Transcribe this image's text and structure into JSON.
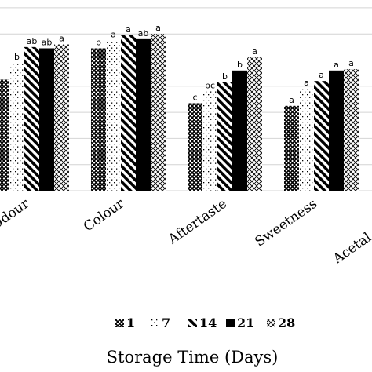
{
  "chart_data": {
    "type": "bar",
    "categories": [
      "Odour",
      "Colour",
      "Aftertaste",
      "Sweetness",
      "Acetal"
    ],
    "series": [
      {
        "name": "1",
        "pattern": "diag-cross",
        "values": [
          4.25,
          5.45,
          3.35,
          3.25,
          null
        ],
        "labels": [
          "",
          "b",
          "c",
          "a",
          ""
        ]
      },
      {
        "name": "7",
        "pattern": "dots",
        "values": [
          4.9,
          5.75,
          3.8,
          3.9,
          null
        ],
        "labels": [
          "b",
          "a",
          "bc",
          "a",
          ""
        ]
      },
      {
        "name": "14",
        "pattern": "stripes",
        "values": [
          5.5,
          5.95,
          4.15,
          4.2,
          null
        ],
        "labels": [
          "ab",
          "a",
          "b",
          "a",
          ""
        ]
      },
      {
        "name": "21",
        "pattern": "solid",
        "values": [
          5.45,
          5.8,
          4.6,
          4.6,
          null
        ],
        "labels": [
          "ab",
          "ab",
          "b",
          "a",
          ""
        ]
      },
      {
        "name": "28",
        "pattern": "cross-light",
        "values": [
          5.6,
          6.0,
          5.1,
          4.65,
          null
        ],
        "labels": [
          "a",
          "a",
          "a",
          "a",
          ""
        ]
      }
    ],
    "xlabel": "Storage Time (Days)",
    "ylabel": "",
    "ylim": [
      0,
      7
    ],
    "grid": true,
    "legend": "bottom"
  }
}
